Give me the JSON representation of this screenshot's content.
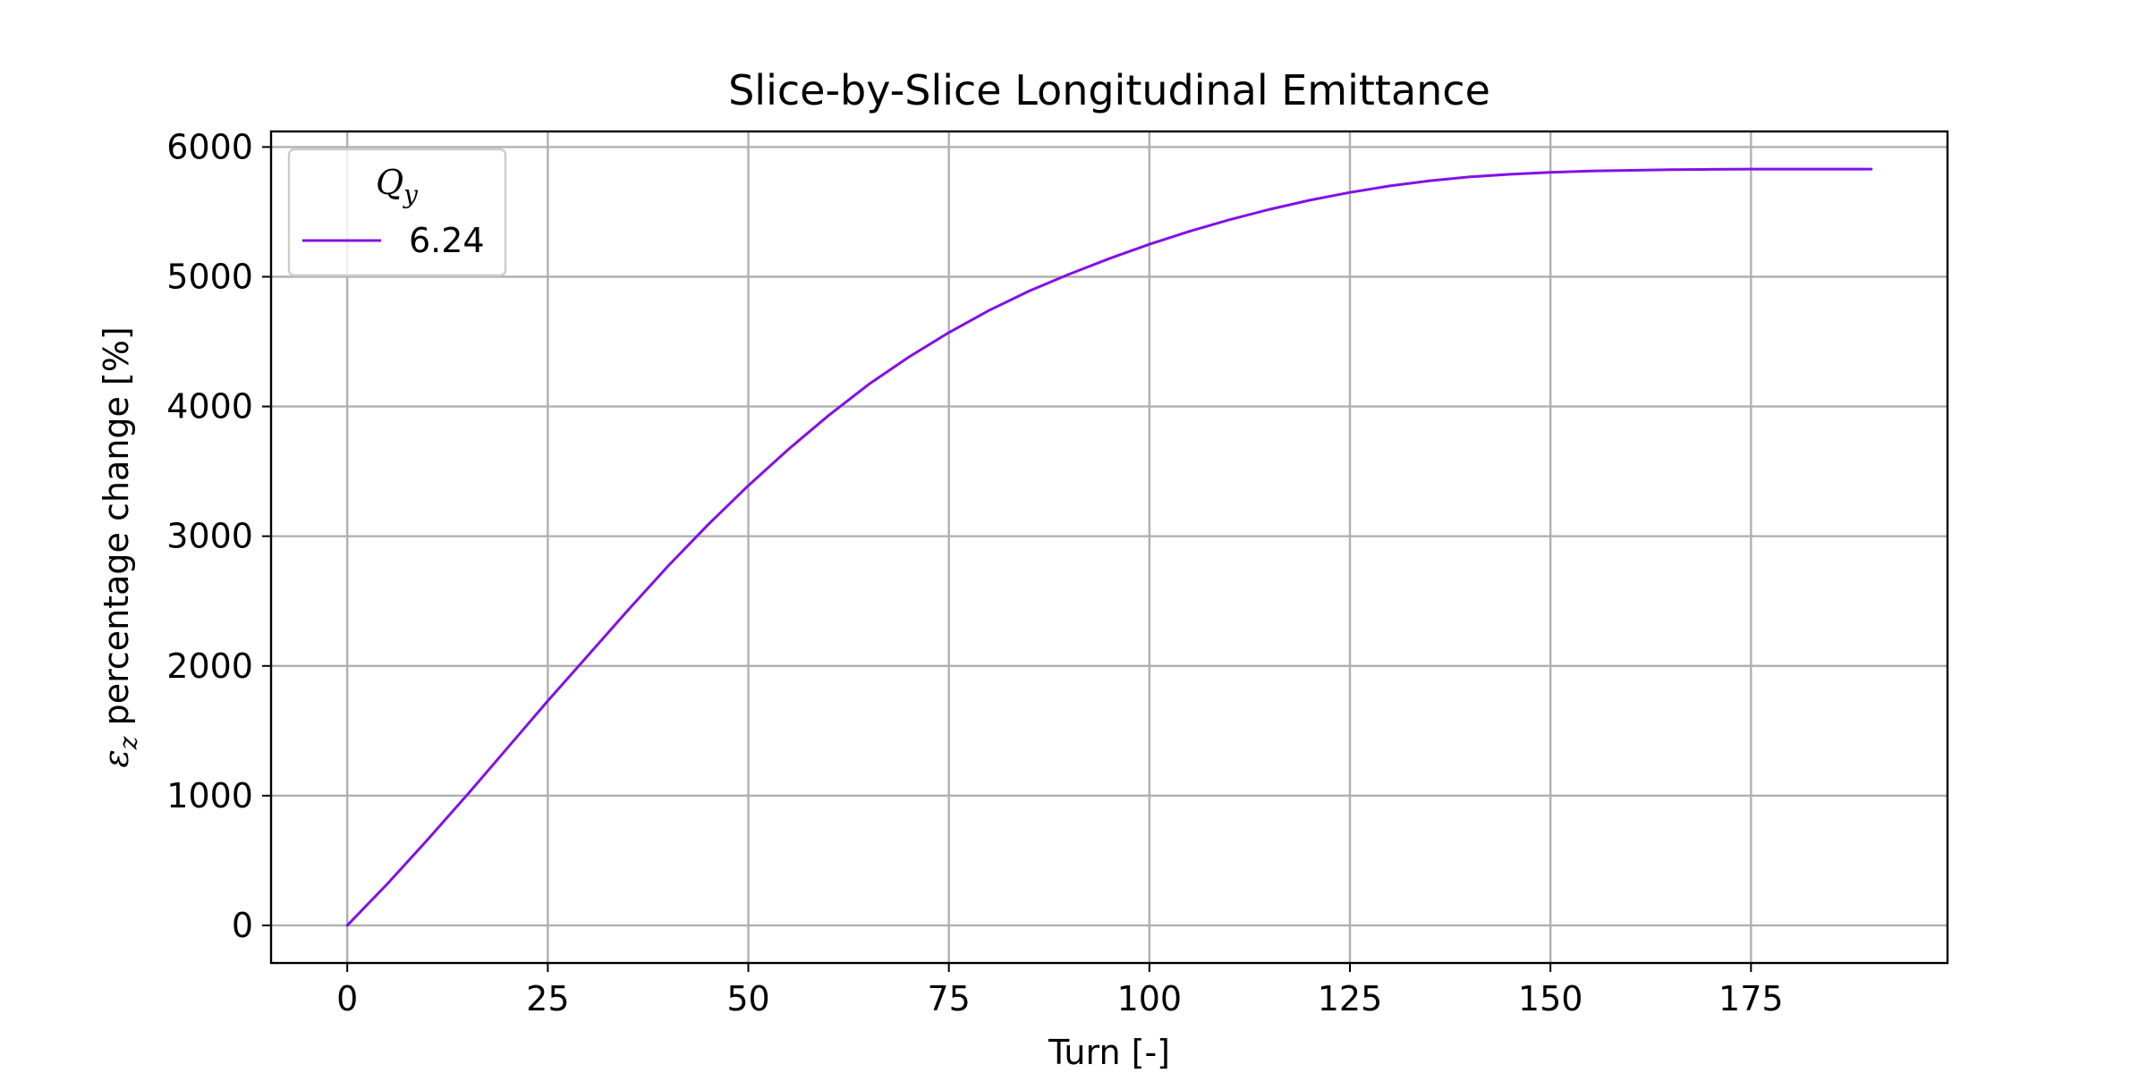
{
  "chart_data": {
    "type": "line",
    "title": "Slice-by-Slice Longitudinal Emittance",
    "xlabel": "Turn [-]",
    "ylabel_prefix": "ε",
    "ylabel_subscript": "z",
    "ylabel_suffix": " percentage change [%]",
    "xlim": [
      -9.5,
      199.5
    ],
    "ylim": [
      -290,
      6120
    ],
    "xticks": [
      0,
      25,
      50,
      75,
      100,
      125,
      150,
      175
    ],
    "yticks": [
      0,
      1000,
      2000,
      3000,
      4000,
      5000,
      6000
    ],
    "grid": true,
    "legend": {
      "placement": "top-left",
      "title_main": "Q",
      "title_subscript": "y"
    },
    "series": [
      {
        "name": "6.24",
        "color": "#8210e8",
        "x": [
          0,
          5,
          10,
          15,
          20,
          25,
          30,
          35,
          40,
          45,
          50,
          55,
          60,
          65,
          70,
          75,
          80,
          85,
          90,
          95,
          100,
          105,
          110,
          115,
          120,
          125,
          130,
          135,
          140,
          145,
          150,
          155,
          160,
          165,
          170,
          175,
          180,
          185,
          190
        ],
        "y": [
          0,
          320,
          660,
          1010,
          1370,
          1730,
          2080,
          2430,
          2770,
          3090,
          3390,
          3670,
          3930,
          4170,
          4380,
          4570,
          4740,
          4890,
          5020,
          5140,
          5250,
          5350,
          5440,
          5520,
          5590,
          5650,
          5700,
          5740,
          5770,
          5790,
          5805,
          5815,
          5820,
          5825,
          5828,
          5830,
          5830,
          5830,
          5830
        ]
      }
    ]
  }
}
